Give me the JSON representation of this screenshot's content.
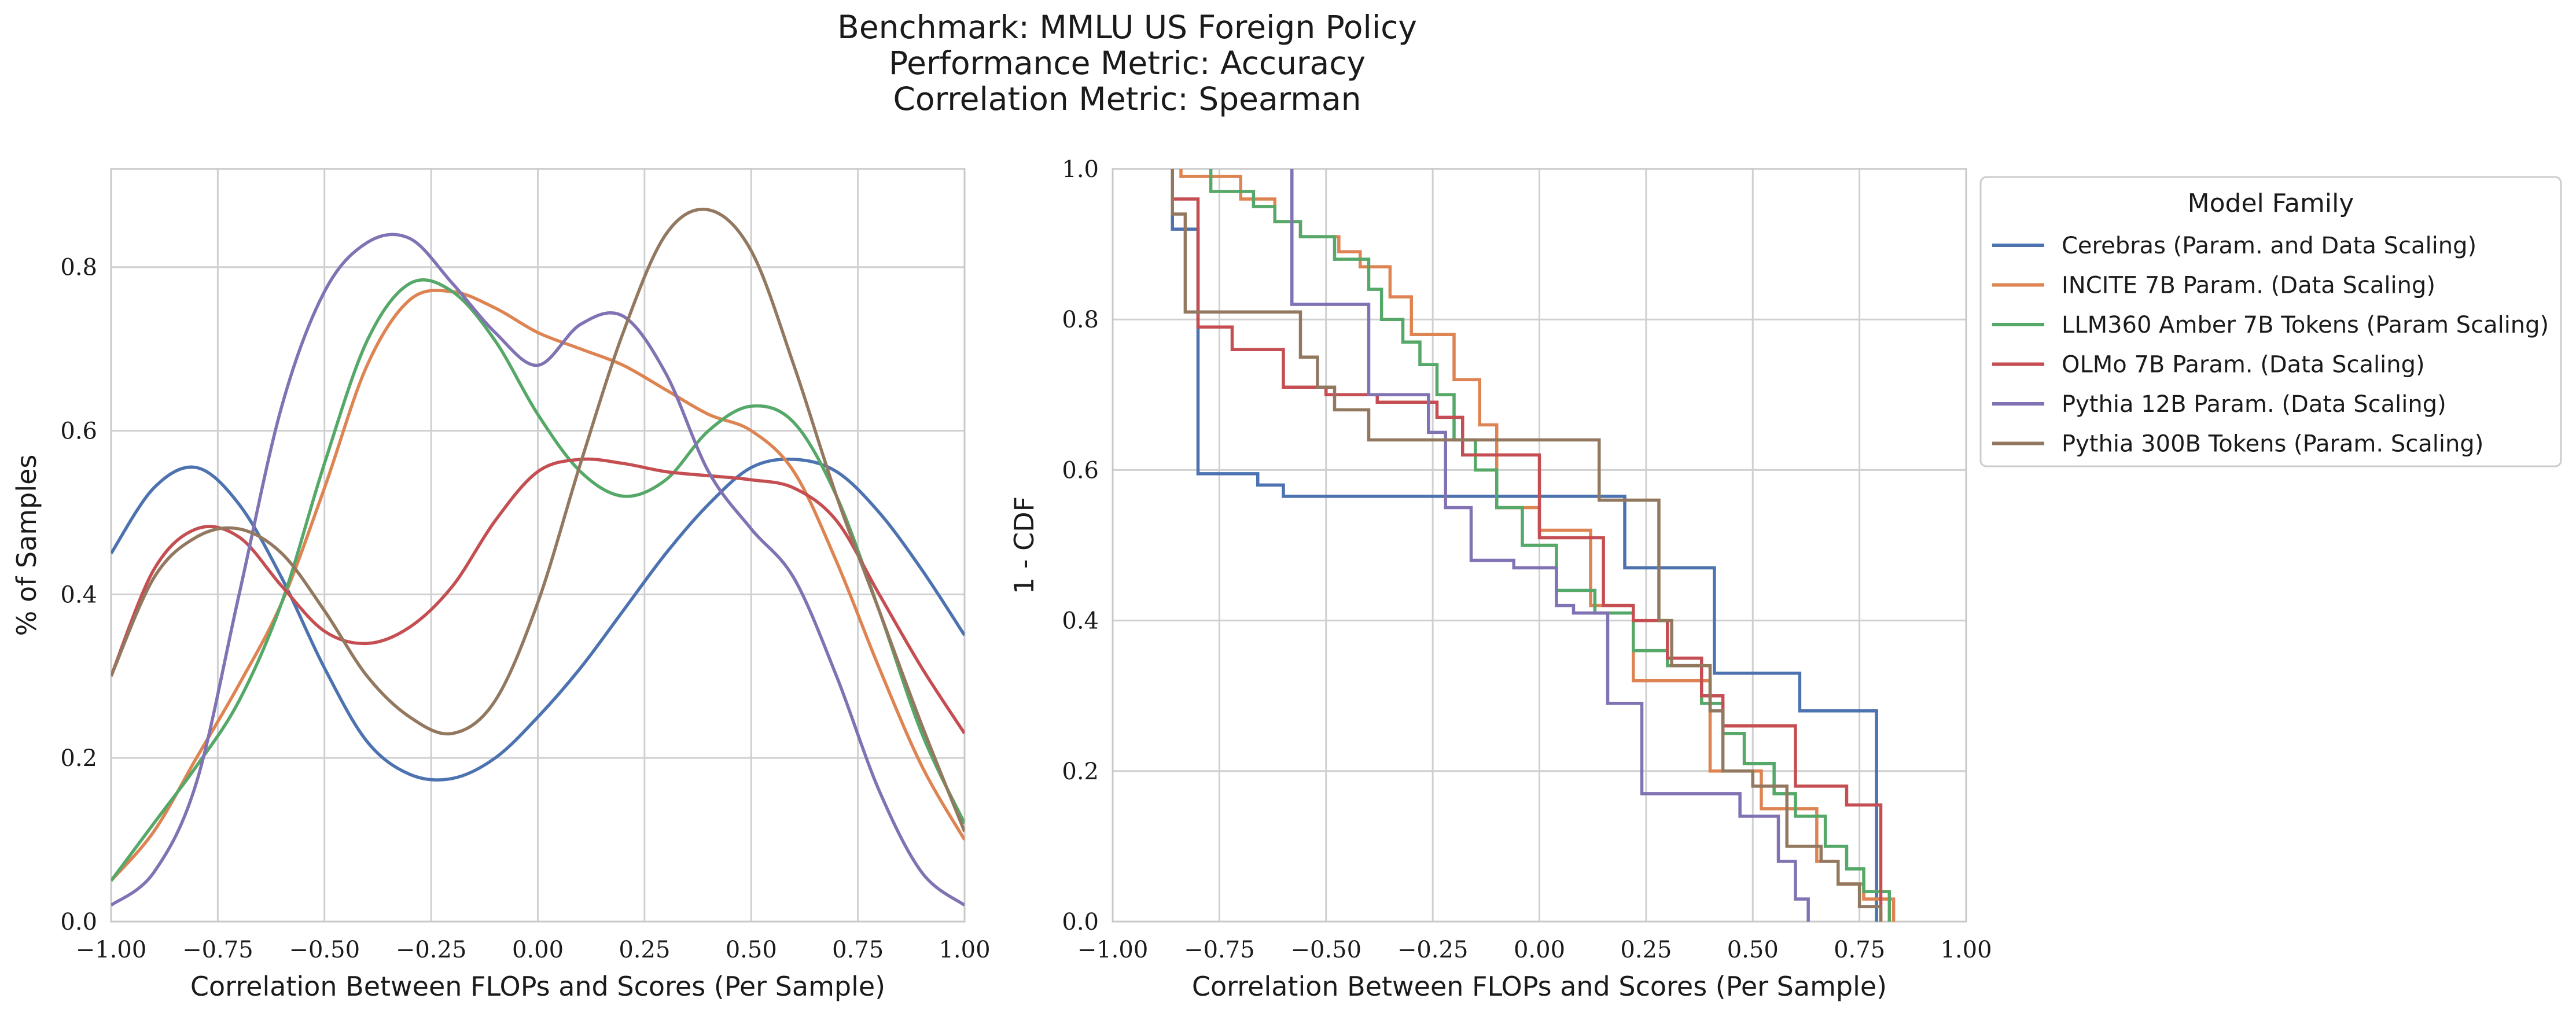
{
  "title": {
    "line1": "Benchmark: MMLU US Foreign Policy",
    "line2": "Performance Metric: Accuracy",
    "line3": "Correlation Metric: Spearman"
  },
  "colors": {
    "Cerebras": "#4c72b0",
    "INCITE": "#dd8452",
    "LLM360": "#55a868",
    "OLMo": "#c44e52",
    "Pythia12B": "#8172b3",
    "Pythia300B": "#937860",
    "grid": "#d0d0d0"
  },
  "legend": {
    "title": "Model Family",
    "placement": "outside right of second plot, top",
    "entries": [
      "Cerebras (Param. and Data Scaling)",
      "INCITE 7B Param. (Data Scaling)",
      "LLM360 Amber 7B Tokens (Param Scaling)",
      "OLMo 7B Param. (Data Scaling)",
      "Pythia 12B Param. (Data Scaling)",
      "Pythia 300B Tokens (Param. Scaling)"
    ]
  },
  "chart_data": [
    {
      "type": "line",
      "subtype": "kde",
      "xlabel": "Correlation Between FLOPs and Scores (Per Sample)",
      "ylabel": "% of Samples",
      "xlim": [
        -1.0,
        1.0
      ],
      "ylim": [
        0.0,
        0.92
      ],
      "xticks": [
        "−1.00",
        "−0.75",
        "−0.50",
        "−0.25",
        "0.00",
        "0.25",
        "0.50",
        "0.75",
        "1.00"
      ],
      "yticks": [
        "0.0",
        "0.2",
        "0.4",
        "0.6",
        "0.8"
      ],
      "grid": true,
      "x": [
        -1.0,
        -0.9,
        -0.8,
        -0.7,
        -0.6,
        -0.5,
        -0.4,
        -0.3,
        -0.2,
        -0.1,
        0.0,
        0.1,
        0.2,
        0.3,
        0.4,
        0.5,
        0.6,
        0.7,
        0.8,
        0.9,
        1.0
      ],
      "series": [
        {
          "name": "Cerebras (Param. and Data Scaling)",
          "values": [
            0.45,
            0.53,
            0.555,
            0.51,
            0.42,
            0.31,
            0.22,
            0.18,
            0.175,
            0.2,
            0.25,
            0.31,
            0.38,
            0.45,
            0.51,
            0.555,
            0.565,
            0.55,
            0.5,
            0.43,
            0.35
          ]
        },
        {
          "name": "INCITE 7B Param. (Data Scaling)",
          "values": [
            0.05,
            0.11,
            0.2,
            0.29,
            0.39,
            0.53,
            0.68,
            0.76,
            0.77,
            0.75,
            0.72,
            0.7,
            0.68,
            0.65,
            0.62,
            0.6,
            0.55,
            0.44,
            0.31,
            0.19,
            0.1
          ]
        },
        {
          "name": "LLM360 Amber 7B Tokens (Param Scaling)",
          "values": [
            0.05,
            0.12,
            0.19,
            0.27,
            0.39,
            0.56,
            0.71,
            0.78,
            0.77,
            0.71,
            0.62,
            0.55,
            0.52,
            0.54,
            0.6,
            0.63,
            0.61,
            0.52,
            0.38,
            0.23,
            0.12
          ]
        },
        {
          "name": "OLMo 7B Param. (Data Scaling)",
          "values": [
            0.3,
            0.43,
            0.48,
            0.47,
            0.41,
            0.355,
            0.34,
            0.36,
            0.41,
            0.49,
            0.55,
            0.565,
            0.56,
            0.55,
            0.545,
            0.54,
            0.53,
            0.49,
            0.4,
            0.31,
            0.23
          ]
        },
        {
          "name": "Pythia 12B Param. (Data Scaling)",
          "values": [
            0.02,
            0.06,
            0.17,
            0.4,
            0.63,
            0.77,
            0.83,
            0.835,
            0.78,
            0.72,
            0.68,
            0.73,
            0.74,
            0.67,
            0.55,
            0.48,
            0.42,
            0.3,
            0.16,
            0.06,
            0.02
          ]
        },
        {
          "name": "Pythia 300B Tokens (Param. Scaling)",
          "values": [
            0.3,
            0.42,
            0.47,
            0.48,
            0.45,
            0.38,
            0.3,
            0.25,
            0.23,
            0.27,
            0.39,
            0.56,
            0.72,
            0.84,
            0.87,
            0.82,
            0.68,
            0.52,
            0.38,
            0.24,
            0.11
          ]
        }
      ]
    },
    {
      "type": "line",
      "subtype": "step (1 - CDF)",
      "xlabel": "Correlation Between FLOPs and Scores (Per Sample)",
      "ylabel": "1 - CDF",
      "xlim": [
        -1.0,
        1.0
      ],
      "ylim": [
        0.0,
        1.0
      ],
      "xticks": [
        "−1.00",
        "−0.75",
        "−0.50",
        "−0.25",
        "0.00",
        "0.25",
        "0.50",
        "0.75",
        "1.00"
      ],
      "yticks": [
        "0.0",
        "0.2",
        "0.4",
        "0.6",
        "0.8",
        "1.0"
      ],
      "grid": true,
      "series": [
        {
          "name": "Cerebras (Param. and Data Scaling)",
          "points": [
            [
              -0.86,
              1.0
            ],
            [
              -0.86,
              0.92
            ],
            [
              -0.8,
              0.92
            ],
            [
              -0.8,
              0.595
            ],
            [
              -0.66,
              0.595
            ],
            [
              -0.66,
              0.58
            ],
            [
              -0.6,
              0.58
            ],
            [
              -0.6,
              0.565
            ],
            [
              0.2,
              0.565
            ],
            [
              0.2,
              0.47
            ],
            [
              0.41,
              0.47
            ],
            [
              0.41,
              0.33
            ],
            [
              0.61,
              0.33
            ],
            [
              0.61,
              0.28
            ],
            [
              0.79,
              0.28
            ],
            [
              0.79,
              0.0
            ]
          ]
        },
        {
          "name": "INCITE 7B Param. (Data Scaling)",
          "points": [
            [
              -0.84,
              1.0
            ],
            [
              -0.84,
              0.99
            ],
            [
              -0.7,
              0.99
            ],
            [
              -0.7,
              0.96
            ],
            [
              -0.62,
              0.96
            ],
            [
              -0.62,
              0.93
            ],
            [
              -0.56,
              0.93
            ],
            [
              -0.56,
              0.91
            ],
            [
              -0.47,
              0.91
            ],
            [
              -0.47,
              0.89
            ],
            [
              -0.42,
              0.89
            ],
            [
              -0.42,
              0.87
            ],
            [
              -0.35,
              0.87
            ],
            [
              -0.35,
              0.83
            ],
            [
              -0.3,
              0.83
            ],
            [
              -0.3,
              0.78
            ],
            [
              -0.2,
              0.78
            ],
            [
              -0.2,
              0.72
            ],
            [
              -0.14,
              0.72
            ],
            [
              -0.14,
              0.66
            ],
            [
              -0.1,
              0.66
            ],
            [
              -0.1,
              0.55
            ],
            [
              0.0,
              0.55
            ],
            [
              0.0,
              0.52
            ],
            [
              0.12,
              0.52
            ],
            [
              0.12,
              0.42
            ],
            [
              0.22,
              0.42
            ],
            [
              0.22,
              0.32
            ],
            [
              0.4,
              0.32
            ],
            [
              0.4,
              0.2
            ],
            [
              0.52,
              0.2
            ],
            [
              0.52,
              0.15
            ],
            [
              0.65,
              0.15
            ],
            [
              0.65,
              0.08
            ],
            [
              0.7,
              0.08
            ],
            [
              0.7,
              0.05
            ],
            [
              0.76,
              0.05
            ],
            [
              0.76,
              0.03
            ],
            [
              0.83,
              0.03
            ],
            [
              0.83,
              0.0
            ]
          ]
        },
        {
          "name": "LLM360 Amber 7B Tokens (Param Scaling)",
          "points": [
            [
              -0.77,
              1.0
            ],
            [
              -0.77,
              0.97
            ],
            [
              -0.67,
              0.97
            ],
            [
              -0.67,
              0.95
            ],
            [
              -0.62,
              0.95
            ],
            [
              -0.62,
              0.93
            ],
            [
              -0.56,
              0.93
            ],
            [
              -0.56,
              0.91
            ],
            [
              -0.48,
              0.91
            ],
            [
              -0.48,
              0.88
            ],
            [
              -0.4,
              0.88
            ],
            [
              -0.4,
              0.84
            ],
            [
              -0.37,
              0.84
            ],
            [
              -0.37,
              0.8
            ],
            [
              -0.32,
              0.8
            ],
            [
              -0.32,
              0.77
            ],
            [
              -0.28,
              0.77
            ],
            [
              -0.28,
              0.74
            ],
            [
              -0.24,
              0.74
            ],
            [
              -0.24,
              0.7
            ],
            [
              -0.2,
              0.7
            ],
            [
              -0.2,
              0.64
            ],
            [
              -0.15,
              0.64
            ],
            [
              -0.15,
              0.6
            ],
            [
              -0.1,
              0.6
            ],
            [
              -0.1,
              0.55
            ],
            [
              -0.04,
              0.55
            ],
            [
              -0.04,
              0.5
            ],
            [
              0.04,
              0.5
            ],
            [
              0.04,
              0.44
            ],
            [
              0.13,
              0.44
            ],
            [
              0.13,
              0.41
            ],
            [
              0.22,
              0.41
            ],
            [
              0.22,
              0.36
            ],
            [
              0.3,
              0.36
            ],
            [
              0.3,
              0.34
            ],
            [
              0.38,
              0.34
            ],
            [
              0.38,
              0.29
            ],
            [
              0.43,
              0.29
            ],
            [
              0.43,
              0.25
            ],
            [
              0.48,
              0.25
            ],
            [
              0.48,
              0.21
            ],
            [
              0.55,
              0.21
            ],
            [
              0.55,
              0.17
            ],
            [
              0.6,
              0.17
            ],
            [
              0.6,
              0.14
            ],
            [
              0.67,
              0.14
            ],
            [
              0.67,
              0.1
            ],
            [
              0.72,
              0.1
            ],
            [
              0.72,
              0.07
            ],
            [
              0.76,
              0.07
            ],
            [
              0.76,
              0.04
            ],
            [
              0.82,
              0.04
            ],
            [
              0.82,
              0.0
            ]
          ]
        },
        {
          "name": "OLMo 7B Param. (Data Scaling)",
          "points": [
            [
              -0.86,
              1.0
            ],
            [
              -0.86,
              0.96
            ],
            [
              -0.8,
              0.96
            ],
            [
              -0.8,
              0.79
            ],
            [
              -0.72,
              0.79
            ],
            [
              -0.72,
              0.76
            ],
            [
              -0.6,
              0.76
            ],
            [
              -0.6,
              0.71
            ],
            [
              -0.5,
              0.71
            ],
            [
              -0.5,
              0.7
            ],
            [
              -0.38,
              0.7
            ],
            [
              -0.38,
              0.69
            ],
            [
              -0.24,
              0.69
            ],
            [
              -0.24,
              0.67
            ],
            [
              -0.18,
              0.67
            ],
            [
              -0.18,
              0.62
            ],
            [
              0.0,
              0.62
            ],
            [
              0.0,
              0.51
            ],
            [
              0.15,
              0.51
            ],
            [
              0.15,
              0.42
            ],
            [
              0.22,
              0.42
            ],
            [
              0.22,
              0.4
            ],
            [
              0.3,
              0.4
            ],
            [
              0.3,
              0.35
            ],
            [
              0.38,
              0.35
            ],
            [
              0.38,
              0.3
            ],
            [
              0.43,
              0.3
            ],
            [
              0.43,
              0.26
            ],
            [
              0.6,
              0.26
            ],
            [
              0.6,
              0.18
            ],
            [
              0.72,
              0.18
            ],
            [
              0.72,
              0.155
            ],
            [
              0.8,
              0.155
            ],
            [
              0.8,
              0.0
            ]
          ]
        },
        {
          "name": "Pythia 12B Param. (Data Scaling)",
          "points": [
            [
              -0.58,
              1.0
            ],
            [
              -0.58,
              0.82
            ],
            [
              -0.4,
              0.82
            ],
            [
              -0.4,
              0.7
            ],
            [
              -0.26,
              0.7
            ],
            [
              -0.26,
              0.65
            ],
            [
              -0.22,
              0.65
            ],
            [
              -0.22,
              0.55
            ],
            [
              -0.16,
              0.55
            ],
            [
              -0.16,
              0.48
            ],
            [
              -0.06,
              0.48
            ],
            [
              -0.06,
              0.47
            ],
            [
              0.04,
              0.47
            ],
            [
              0.04,
              0.42
            ],
            [
              0.08,
              0.42
            ],
            [
              0.08,
              0.41
            ],
            [
              0.16,
              0.41
            ],
            [
              0.16,
              0.29
            ],
            [
              0.24,
              0.29
            ],
            [
              0.24,
              0.17
            ],
            [
              0.47,
              0.17
            ],
            [
              0.47,
              0.14
            ],
            [
              0.56,
              0.14
            ],
            [
              0.56,
              0.08
            ],
            [
              0.6,
              0.08
            ],
            [
              0.6,
              0.03
            ],
            [
              0.63,
              0.03
            ],
            [
              0.63,
              0.0
            ]
          ]
        },
        {
          "name": "Pythia 300B Tokens (Param. Scaling)",
          "points": [
            [
              -0.86,
              1.0
            ],
            [
              -0.86,
              0.94
            ],
            [
              -0.83,
              0.94
            ],
            [
              -0.83,
              0.81
            ],
            [
              -0.56,
              0.81
            ],
            [
              -0.56,
              0.75
            ],
            [
              -0.52,
              0.75
            ],
            [
              -0.52,
              0.71
            ],
            [
              -0.48,
              0.71
            ],
            [
              -0.48,
              0.68
            ],
            [
              -0.4,
              0.68
            ],
            [
              -0.4,
              0.64
            ],
            [
              0.14,
              0.64
            ],
            [
              0.14,
              0.56
            ],
            [
              0.28,
              0.56
            ],
            [
              0.28,
              0.4
            ],
            [
              0.31,
              0.4
            ],
            [
              0.31,
              0.34
            ],
            [
              0.4,
              0.34
            ],
            [
              0.4,
              0.28
            ],
            [
              0.43,
              0.28
            ],
            [
              0.43,
              0.2
            ],
            [
              0.5,
              0.2
            ],
            [
              0.5,
              0.18
            ],
            [
              0.58,
              0.18
            ],
            [
              0.58,
              0.1
            ],
            [
              0.66,
              0.1
            ],
            [
              0.66,
              0.08
            ],
            [
              0.7,
              0.08
            ],
            [
              0.7,
              0.05
            ],
            [
              0.75,
              0.05
            ],
            [
              0.75,
              0.02
            ],
            [
              0.8,
              0.02
            ],
            [
              0.8,
              0.0
            ]
          ]
        }
      ]
    }
  ]
}
